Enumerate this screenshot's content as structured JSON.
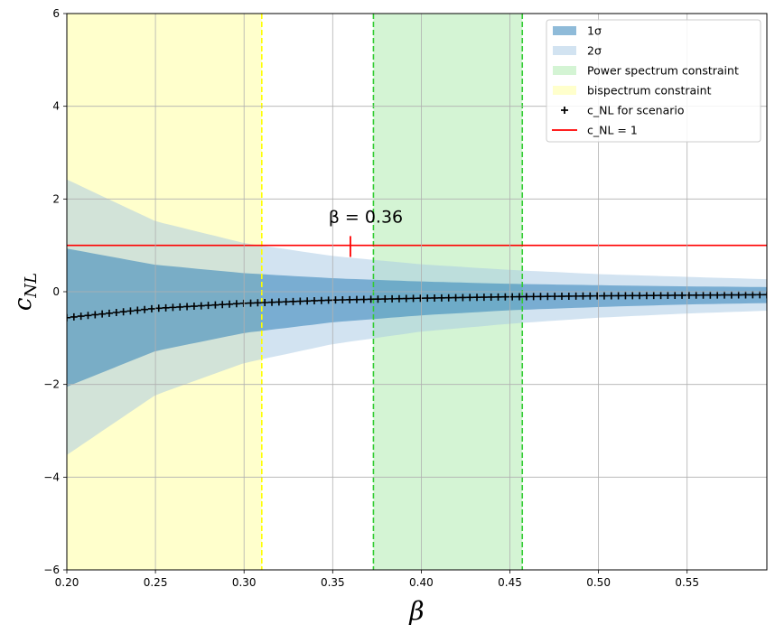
{
  "chart_data": {
    "type": "area",
    "xlabel": "β",
    "ylabel": "c_NL",
    "xlim": [
      0.2,
      0.595
    ],
    "ylim": [
      -6,
      6
    ],
    "x_ticks": [
      "0.20",
      "0.25",
      "0.30",
      "0.35",
      "0.40",
      "0.45",
      "0.50",
      "0.55"
    ],
    "y_ticks": [
      "−6",
      "−4",
      "−2",
      "0",
      "2",
      "4",
      "6"
    ],
    "grid": true,
    "legend_position": "top-right",
    "legend": [
      "1σ",
      "2σ",
      "Power spectrum constraint",
      "bispectrum constraint",
      "c_NL for scenario",
      "c_NL = 1"
    ],
    "bands": {
      "one_sigma": {
        "name": "1σ",
        "color": "#1f77b4",
        "opacity": 0.5,
        "x": [
          0.2,
          0.25,
          0.3,
          0.35,
          0.4,
          0.45,
          0.5,
          0.55,
          0.595
        ],
        "upper": [
          0.93,
          0.58,
          0.4,
          0.29,
          0.22,
          0.17,
          0.14,
          0.115,
          0.1
        ],
        "lower": [
          -2.05,
          -1.28,
          -0.89,
          -0.66,
          -0.51,
          -0.4,
          -0.33,
          -0.275,
          -0.245
        ]
      },
      "two_sigma": {
        "name": "2σ",
        "color": "#a6c8e3",
        "opacity": 0.5,
        "x": [
          0.2,
          0.25,
          0.3,
          0.35,
          0.4,
          0.45,
          0.5,
          0.55,
          0.595
        ],
        "upper": [
          2.42,
          1.52,
          1.05,
          0.77,
          0.59,
          0.47,
          0.38,
          0.32,
          0.27
        ],
        "lower": [
          -3.52,
          -2.23,
          -1.54,
          -1.13,
          -0.86,
          -0.69,
          -0.56,
          -0.47,
          -0.41
        ]
      }
    },
    "regions": {
      "power_spectrum": {
        "name": "Power spectrum constraint",
        "x_range": [
          0.373,
          0.457
        ],
        "fill": "#d4f4d4",
        "line_color": "#33cc33"
      },
      "bispectrum": {
        "name": "bispectrum constraint",
        "x_range": [
          0.2,
          0.31
        ],
        "fill": "#ffffcc",
        "line_color": "#ffff00"
      }
    },
    "scenario": {
      "name": "c_NL for scenario",
      "marker": "+",
      "color": "#000000",
      "x": [
        0.2,
        0.25,
        0.3,
        0.35,
        0.4,
        0.45,
        0.5,
        0.55,
        0.595
      ],
      "y": [
        -0.56,
        -0.36,
        -0.25,
        -0.18,
        -0.14,
        -0.11,
        -0.09,
        -0.075,
        -0.065
      ]
    },
    "hline": {
      "name": "c_NL = 1",
      "y": 1,
      "color": "#ff0000"
    },
    "annotation": {
      "text": "β = 0.36",
      "x": 0.36,
      "y_low": 0.75,
      "y_high": 1.2
    }
  }
}
